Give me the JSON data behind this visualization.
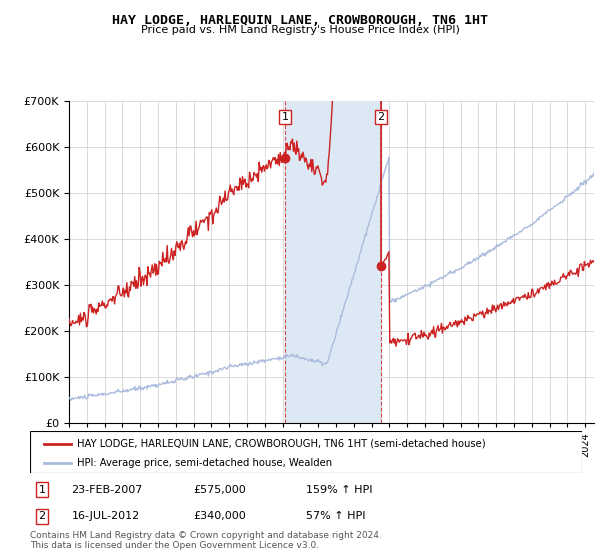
{
  "title": "HAY LODGE, HARLEQUIN LANE, CROWBOROUGH, TN6 1HT",
  "subtitle": "Price paid vs. HM Land Registry's House Price Index (HPI)",
  "legend_line1": "HAY LODGE, HARLEQUIN LANE, CROWBOROUGH, TN6 1HT (semi-detached house)",
  "legend_line2": "HPI: Average price, semi-detached house, Wealden",
  "table_row1": [
    "1",
    "23-FEB-2007",
    "£575,000",
    "159% ↑ HPI"
  ],
  "table_row2": [
    "2",
    "16-JUL-2012",
    "£340,000",
    "57% ↑ HPI"
  ],
  "footnote": "Contains HM Land Registry data © Crown copyright and database right 2024.\nThis data is licensed under the Open Government Licence v3.0.",
  "purchase1_year": 2007.14,
  "purchase1_price": 575000,
  "purchase2_year": 2012.54,
  "purchase2_price": 340000,
  "hpi_line_color": "#aabbdd",
  "price_line_color": "#cc2222",
  "purchase_dot_color": "#cc2222",
  "highlight_color": "#dde8f5",
  "ylim": [
    0,
    700000
  ],
  "xlim_start": 1995.0,
  "xlim_end": 2024.5
}
